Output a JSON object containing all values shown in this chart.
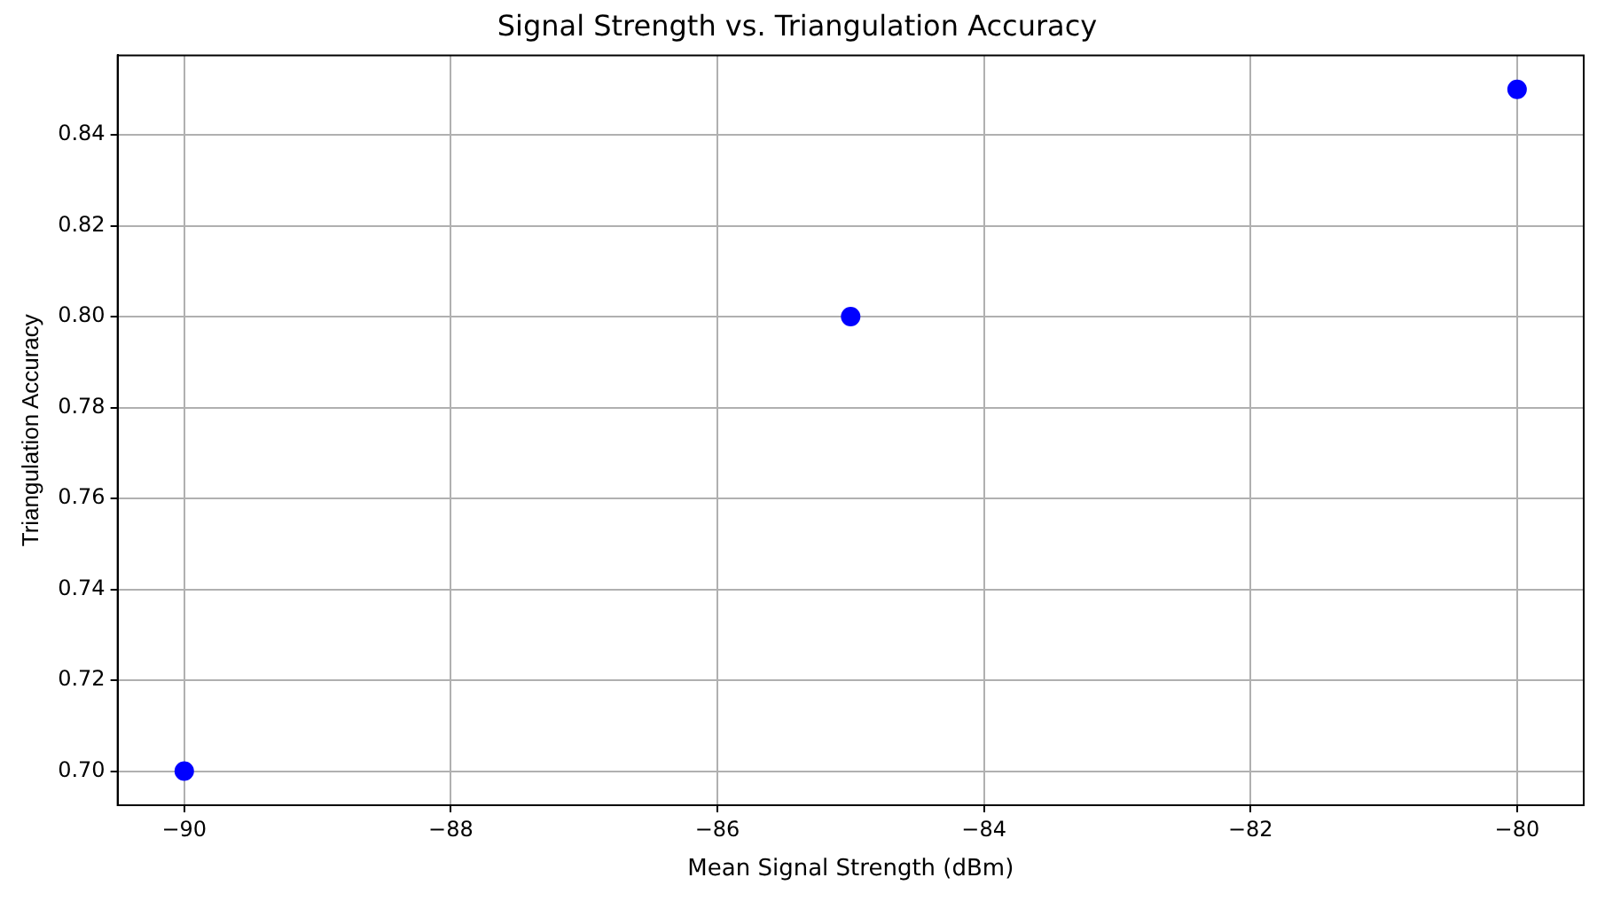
{
  "chart_data": {
    "type": "scatter",
    "title": "Signal Strength vs. Triangulation Accuracy",
    "xlabel": "Mean Signal Strength (dBm)",
    "ylabel": "Triangulation Accuracy",
    "x": [
      -90,
      -85,
      -80
    ],
    "series": [
      {
        "color": "#0000ff",
        "values": [
          0.7,
          0.8,
          0.85
        ]
      }
    ],
    "xlim": [
      -90.5,
      -79.5
    ],
    "xticks": [
      {
        "value": -90,
        "label": "−90"
      },
      {
        "value": -88,
        "label": "−88"
      },
      {
        "value": -86,
        "label": "−86"
      },
      {
        "value": -84,
        "label": "−84"
      },
      {
        "value": -82,
        "label": "−82"
      },
      {
        "value": -80,
        "label": "−80"
      }
    ],
    "ylim": [
      0.6925,
      0.8575
    ],
    "yticks": [
      {
        "value": 0.7,
        "label": "0.70"
      },
      {
        "value": 0.72,
        "label": "0.72"
      },
      {
        "value": 0.74,
        "label": "0.74"
      },
      {
        "value": 0.76,
        "label": "0.76"
      },
      {
        "value": 0.78,
        "label": "0.78"
      },
      {
        "value": 0.8,
        "label": "0.80"
      },
      {
        "value": 0.82,
        "label": "0.82"
      },
      {
        "value": 0.84,
        "label": "0.84"
      }
    ],
    "grid": true,
    "legend": false,
    "marker": "circle"
  }
}
